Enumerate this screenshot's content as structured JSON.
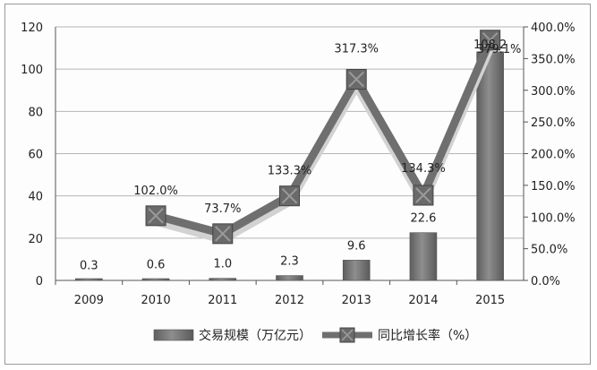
{
  "chart_data": {
    "type": "bar",
    "categories": [
      "2009",
      "2010",
      "2011",
      "2012",
      "2013",
      "2014",
      "2015"
    ],
    "series": [
      {
        "name": "交易规模（万亿元）",
        "type": "bar",
        "axis": "left",
        "values": [
          0.3,
          0.6,
          1.0,
          2.3,
          9.6,
          22.6,
          108.2
        ],
        "labels": [
          "0.3",
          "0.6",
          "1.0",
          "2.3",
          "9.6",
          "22.6",
          "108.2"
        ]
      },
      {
        "name": "同比增长率（%）",
        "type": "line",
        "axis": "right",
        "values": [
          null,
          102.0,
          73.7,
          133.3,
          317.3,
          134.3,
          379.1
        ],
        "labels": [
          "",
          "102.0%",
          "73.7%",
          "133.3%",
          "317.3%",
          "134.3%",
          "379.1%"
        ]
      }
    ],
    "y_left": {
      "ylim": [
        0,
        120
      ],
      "ticks": [
        "0",
        "20",
        "40",
        "60",
        "80",
        "100",
        "120"
      ]
    },
    "y_right": {
      "ylim": [
        0,
        400
      ],
      "ticks": [
        "0.0%",
        "50.0%",
        "100.0%",
        "150.0%",
        "200.0%",
        "250.0%",
        "300.0%",
        "350.0%",
        "400.0%"
      ]
    },
    "grid": true,
    "legend": "bottom",
    "colors": {
      "bar": "#7a7a7a",
      "line": "#6f6f6f",
      "grid": "#b5b5b5",
      "axis": "#555555"
    }
  }
}
